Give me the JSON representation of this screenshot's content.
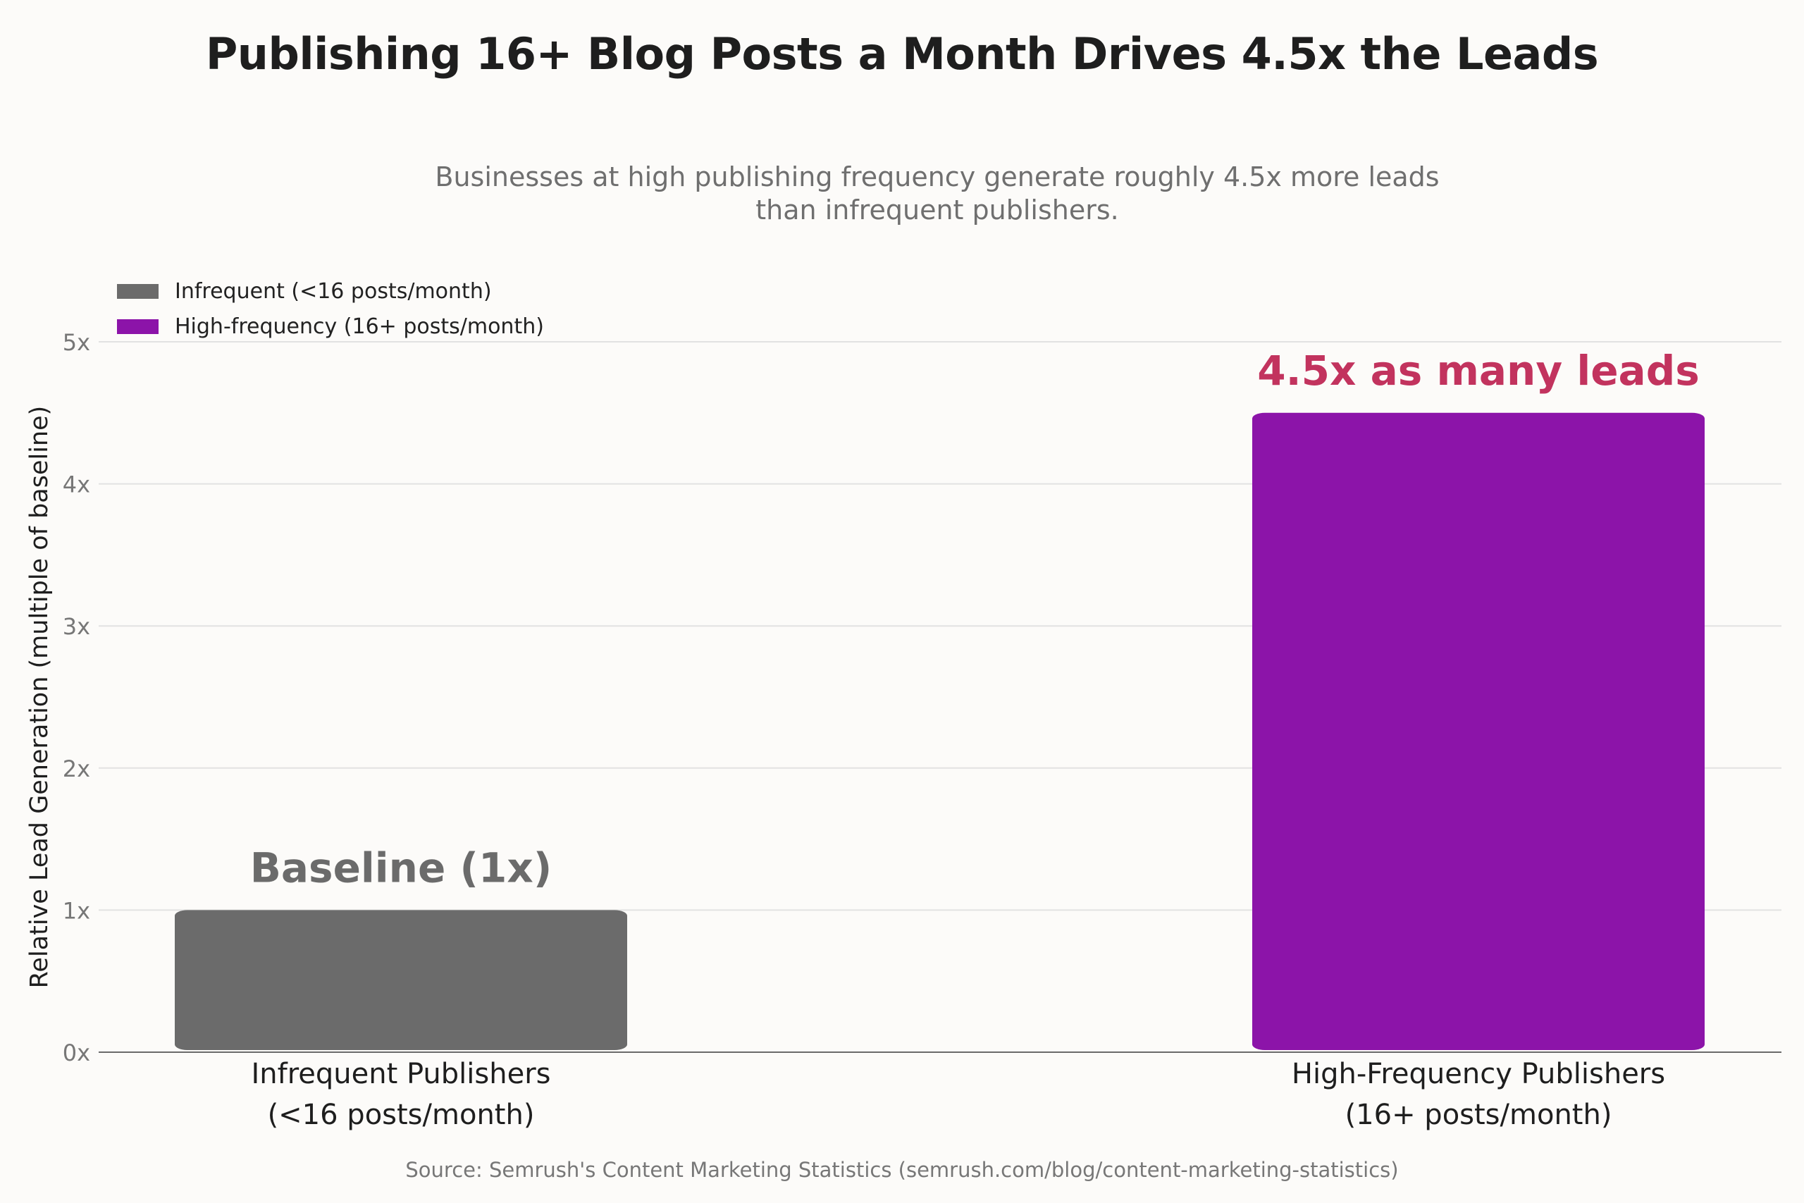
{
  "chart_data": {
    "type": "bar",
    "title": "Publishing 16+ Blog Posts a Month Drives 4.5x the Leads",
    "subtitle_lines": [
      "Businesses at high publishing frequency generate roughly 4.5x more leads",
      "than infrequent publishers."
    ],
    "ylabel": "Relative Lead Generation (multiple of baseline)",
    "ylim": [
      0,
      5
    ],
    "yticks": [
      {
        "value": 0,
        "label": "0x"
      },
      {
        "value": 1,
        "label": "1x"
      },
      {
        "value": 2,
        "label": "2x"
      },
      {
        "value": 3,
        "label": "3x"
      },
      {
        "value": 4,
        "label": "4x"
      },
      {
        "value": 5,
        "label": "5x"
      }
    ],
    "grid": true,
    "legend_position": "top-left",
    "categories": [
      {
        "lines": [
          "Infrequent Publishers",
          "(<16 posts/month)"
        ]
      },
      {
        "lines": [
          "High-Frequency Publishers",
          "(16+ posts/month)"
        ]
      }
    ],
    "series": [
      {
        "name": "Infrequent (<16 posts/month)",
        "values": [
          1,
          null
        ],
        "color": "#6b6b6b"
      },
      {
        "name": "High-frequency (16+ posts/month)",
        "values": [
          null,
          4.5
        ],
        "color": "#8c14a9"
      }
    ],
    "annotations": [
      {
        "category_index": 0,
        "text": "Baseline (1x)",
        "color": "#6b6b6b"
      },
      {
        "category_index": 1,
        "text": "4.5x as many leads",
        "color": "#c2335e"
      }
    ],
    "source": "Source: Semrush's Content Marketing Statistics (semrush.com/blog/content-marketing-statistics)"
  }
}
